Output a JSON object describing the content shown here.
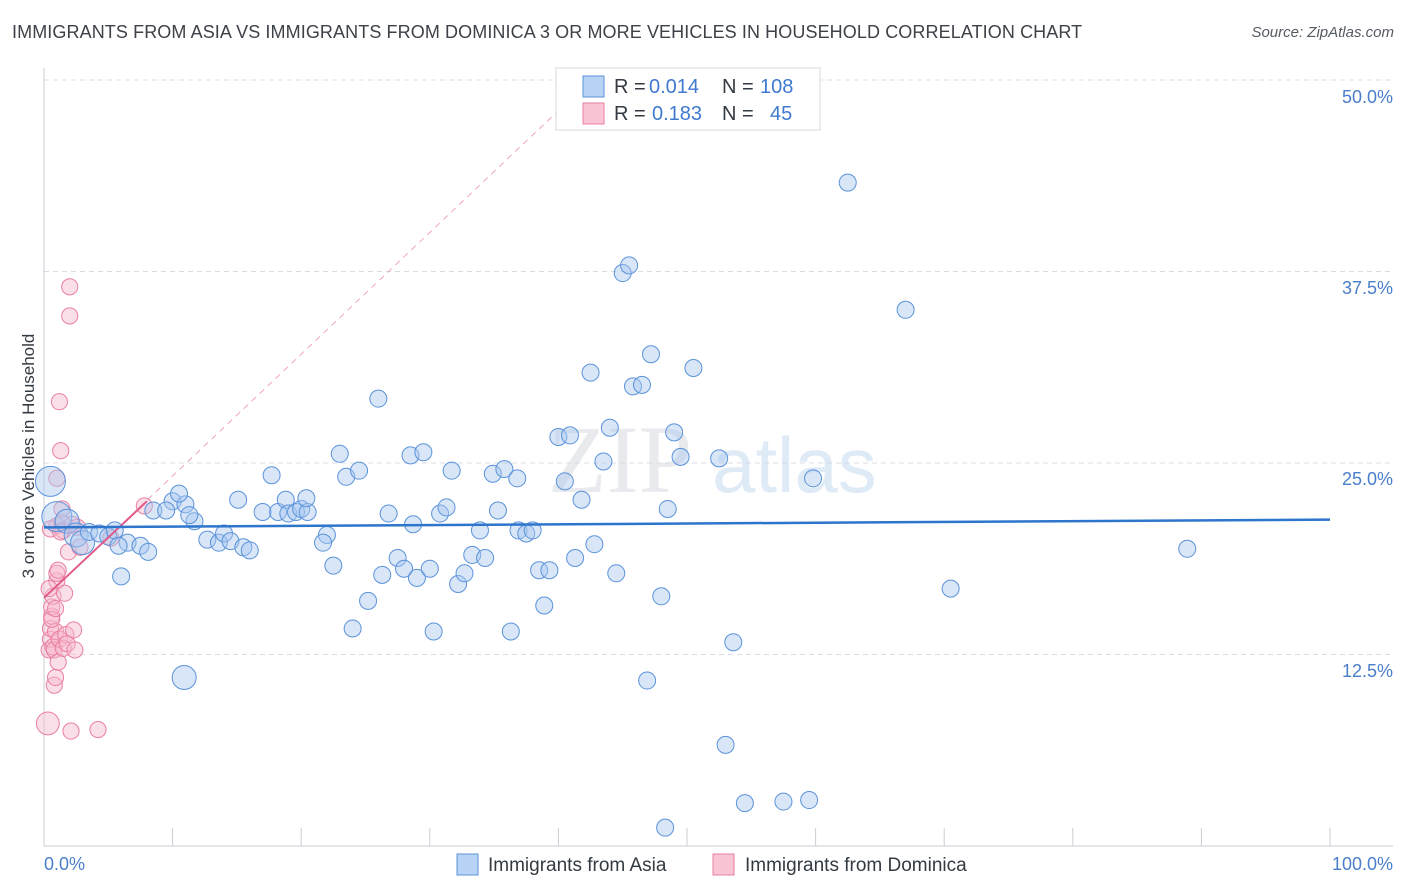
{
  "title": "IMMIGRANTS FROM ASIA VS IMMIGRANTS FROM DOMINICA 3 OR MORE VEHICLES IN HOUSEHOLD CORRELATION CHART",
  "source": "Source: ZipAtlas.com",
  "watermark": {
    "zip": "ZIP",
    "atlas": "atlas"
  },
  "colors": {
    "asia_fill": "#a8c8f0",
    "asia_stroke": "#5b93da",
    "asia_line": "#2e75cc",
    "dominica_fill": "#f7b8cb",
    "dominica_stroke": "#e97fa0",
    "dominica_line": "#e05b8a",
    "grid": "#d9dde3",
    "axis_label": "#4a7ecb"
  },
  "legend": {
    "rows": [
      {
        "r_label": "R =",
        "r_value": "0.014",
        "n_label": "N =",
        "n_value": "108"
      },
      {
        "r_label": "R =",
        "r_value": "0.183",
        "n_label": "N =",
        "n_value": "45"
      }
    ]
  },
  "bottom_legend": {
    "asia": "Immigrants from Asia",
    "dominica": "Immigrants from Dominica"
  },
  "chart_data": {
    "type": "scatter",
    "title": "IMMIGRANTS FROM ASIA VS IMMIGRANTS FROM DOMINICA 3 OR MORE VEHICLES IN HOUSEHOLD CORRELATION CHART",
    "xlabel": "",
    "ylabel": "3 or more Vehicles in Household",
    "xlim": [
      0,
      100
    ],
    "ylim": [
      0,
      50
    ],
    "x_tick_labels": [
      "0.0%",
      "100.0%"
    ],
    "y_ticks": [
      12.5,
      25.0,
      37.5,
      50.0
    ],
    "y_tick_labels": [
      "12.5%",
      "25.0%",
      "37.5%",
      "50.0%"
    ],
    "grid": true,
    "legend_position": "top-center",
    "series": [
      {
        "name": "Immigrants from Asia",
        "R": 0.014,
        "N": 108,
        "trend": {
          "x": [
            0,
            100
          ],
          "y": [
            20.8,
            21.3
          ]
        },
        "points": [
          [
            0.5,
            23.8,
            3
          ],
          [
            1.0,
            21.5,
            3
          ],
          [
            1.8,
            21.2,
            2
          ],
          [
            2.5,
            20.3,
            2
          ],
          [
            3.0,
            19.8,
            2
          ],
          [
            3.5,
            20.5,
            1
          ],
          [
            4.3,
            20.4,
            1
          ],
          [
            5.0,
            20.2,
            1
          ],
          [
            5.5,
            20.6,
            1
          ],
          [
            6.5,
            19.8,
            1
          ],
          [
            5.8,
            19.6,
            1
          ],
          [
            7.5,
            19.6,
            1
          ],
          [
            8.1,
            19.2,
            1
          ],
          [
            6.0,
            17.6,
            1
          ],
          [
            10.0,
            22.5,
            1
          ],
          [
            8.5,
            21.9,
            1
          ],
          [
            9.5,
            21.9,
            1
          ],
          [
            11.0,
            22.3,
            1
          ],
          [
            11.7,
            21.2,
            1
          ],
          [
            10.5,
            23.0,
            1
          ],
          [
            11.3,
            21.6,
            1
          ],
          [
            12.7,
            20.0,
            1
          ],
          [
            13.6,
            19.8,
            1
          ],
          [
            14.0,
            20.4,
            1
          ],
          [
            14.5,
            19.9,
            1
          ],
          [
            15.5,
            19.5,
            1
          ],
          [
            16.0,
            19.3,
            1
          ],
          [
            15.1,
            22.6,
            1
          ],
          [
            17.0,
            21.8,
            1
          ],
          [
            18.2,
            21.8,
            1
          ],
          [
            18.8,
            22.6,
            1
          ],
          [
            19.0,
            21.7,
            1
          ],
          [
            19.6,
            21.8,
            1
          ],
          [
            20.0,
            22.0,
            1
          ],
          [
            20.5,
            21.8,
            1
          ],
          [
            22.0,
            20.3,
            1
          ],
          [
            21.7,
            19.8,
            1
          ],
          [
            17.7,
            24.2,
            1
          ],
          [
            20.4,
            22.7,
            1
          ],
          [
            22.5,
            18.3,
            1
          ],
          [
            23.0,
            25.6,
            1
          ],
          [
            23.5,
            24.1,
            1
          ],
          [
            24.5,
            24.5,
            1
          ],
          [
            25.2,
            16.0,
            1
          ],
          [
            26.0,
            29.2,
            1
          ],
          [
            26.3,
            17.7,
            1
          ],
          [
            26.8,
            21.7,
            1
          ],
          [
            27.5,
            18.8,
            1
          ],
          [
            28.0,
            18.1,
            1
          ],
          [
            28.5,
            25.5,
            1
          ],
          [
            29.0,
            17.5,
            1
          ],
          [
            29.5,
            25.7,
            1
          ],
          [
            30.0,
            18.1,
            1
          ],
          [
            30.3,
            14.0,
            1
          ],
          [
            28.7,
            21.0,
            1
          ],
          [
            24.0,
            14.2,
            1
          ],
          [
            30.8,
            21.7,
            1
          ],
          [
            31.3,
            22.1,
            1
          ],
          [
            31.7,
            24.5,
            1
          ],
          [
            32.2,
            17.1,
            1
          ],
          [
            32.7,
            17.8,
            1
          ],
          [
            33.3,
            19.0,
            1
          ],
          [
            33.9,
            20.6,
            1
          ],
          [
            34.3,
            18.8,
            1
          ],
          [
            34.9,
            24.3,
            1
          ],
          [
            35.3,
            21.9,
            1
          ],
          [
            35.8,
            24.6,
            1
          ],
          [
            36.3,
            14.0,
            1
          ],
          [
            36.8,
            24.0,
            1
          ],
          [
            36.9,
            20.6,
            1
          ],
          [
            37.5,
            20.4,
            1
          ],
          [
            38.0,
            20.6,
            1
          ],
          [
            38.5,
            18.0,
            1
          ],
          [
            38.9,
            15.7,
            1
          ],
          [
            39.3,
            18.0,
            1
          ],
          [
            40.0,
            26.7,
            1
          ],
          [
            40.5,
            23.8,
            1
          ],
          [
            40.9,
            26.8,
            1
          ],
          [
            41.3,
            18.8,
            1
          ],
          [
            41.8,
            22.6,
            1
          ],
          [
            42.5,
            30.9,
            1
          ],
          [
            42.8,
            19.7,
            1
          ],
          [
            43.5,
            25.1,
            1
          ],
          [
            44.0,
            27.3,
            1
          ],
          [
            44.5,
            17.8,
            1
          ],
          [
            45.0,
            37.4,
            1
          ],
          [
            45.5,
            37.9,
            1
          ],
          [
            45.8,
            30.0,
            1
          ],
          [
            46.5,
            30.1,
            1
          ],
          [
            46.9,
            10.8,
            1
          ],
          [
            47.2,
            32.1,
            1
          ],
          [
            48.0,
            16.3,
            1
          ],
          [
            48.5,
            22.0,
            1
          ],
          [
            49.0,
            27.0,
            1
          ],
          [
            49.5,
            25.4,
            1
          ],
          [
            50.5,
            31.2,
            1
          ],
          [
            52.5,
            25.3,
            1
          ],
          [
            53.0,
            6.6,
            1
          ],
          [
            53.6,
            13.3,
            1
          ],
          [
            54.5,
            2.8,
            1
          ],
          [
            57.5,
            2.9,
            1
          ],
          [
            59.5,
            3.0,
            1
          ],
          [
            59.8,
            24.0,
            1
          ],
          [
            62.5,
            43.3,
            1
          ],
          [
            67.0,
            35.0,
            1
          ],
          [
            70.5,
            16.8,
            1
          ],
          [
            88.9,
            19.4,
            1
          ],
          [
            48.3,
            1.2,
            1
          ],
          [
            10.9,
            11.0,
            2
          ]
        ]
      },
      {
        "name": "Immigrants from Dominica",
        "R": 0.183,
        "N": 45,
        "trend": {
          "x": [
            0,
            8
          ],
          "y": [
            16.2,
            22.5
          ]
        },
        "trend_extended": {
          "x": [
            0,
            40
          ],
          "y": [
            16.2,
            48.0
          ]
        },
        "points": [
          [
            0.3,
            8.0,
            2
          ],
          [
            0.4,
            12.8,
            1
          ],
          [
            0.5,
            13.5,
            1
          ],
          [
            0.5,
            14.2,
            1
          ],
          [
            0.6,
            15.0,
            1
          ],
          [
            0.6,
            15.6,
            1
          ],
          [
            0.7,
            16.3,
            1
          ],
          [
            0.7,
            13.0,
            1
          ],
          [
            0.8,
            12.8,
            1
          ],
          [
            0.8,
            10.5,
            1
          ],
          [
            0.9,
            11.0,
            1
          ],
          [
            0.9,
            14.0,
            1
          ],
          [
            1.0,
            17.3,
            1
          ],
          [
            1.0,
            17.8,
            1
          ],
          [
            1.0,
            24.0,
            1
          ],
          [
            1.0,
            20.9,
            1
          ],
          [
            0.5,
            20.7,
            1
          ],
          [
            1.1,
            12.0,
            1
          ],
          [
            1.2,
            13.5,
            1
          ],
          [
            1.2,
            29.0,
            1
          ],
          [
            1.3,
            25.8,
            1
          ],
          [
            1.4,
            21.1,
            1
          ],
          [
            1.5,
            12.9,
            1
          ],
          [
            1.5,
            20.6,
            1
          ],
          [
            1.6,
            16.5,
            1
          ],
          [
            1.7,
            13.8,
            1
          ],
          [
            1.8,
            13.2,
            1
          ],
          [
            1.9,
            19.2,
            1
          ],
          [
            2.0,
            36.5,
            1
          ],
          [
            2.0,
            34.6,
            1
          ],
          [
            2.1,
            7.5,
            1
          ],
          [
            2.2,
            21.0,
            1
          ],
          [
            2.3,
            14.1,
            1
          ],
          [
            2.4,
            12.8,
            1
          ],
          [
            2.6,
            20.8,
            1
          ],
          [
            2.8,
            19.5,
            1
          ],
          [
            1.3,
            20.5,
            1
          ],
          [
            0.6,
            14.8,
            1
          ],
          [
            0.9,
            15.5,
            1
          ],
          [
            1.1,
            18.0,
            1
          ],
          [
            0.4,
            16.8,
            1
          ],
          [
            4.2,
            7.6,
            1
          ],
          [
            5.2,
            20.1,
            1
          ],
          [
            7.8,
            22.2,
            1
          ],
          [
            1.4,
            22.0,
            1
          ]
        ]
      }
    ]
  }
}
